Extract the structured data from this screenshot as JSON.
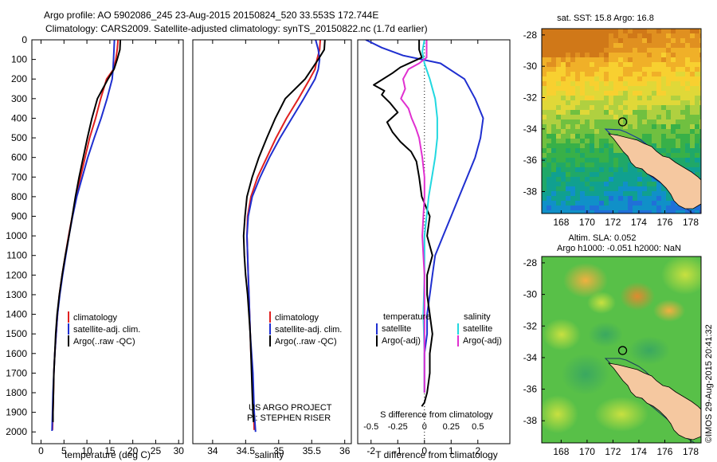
{
  "header": {
    "line1": "Argo profile: AO 5902086_245 23-Aug-2015 20150824_520 33.553S 172.744E",
    "line2": "Climatology: CARS2009. Satellite-adjusted climatology: synTS_20150822.nc (1.7d earlier)"
  },
  "colors": {
    "climatology": "#e02020",
    "satellite": "#1f2fd0",
    "argo": "#000000",
    "sat_salinity": "#22d8e0",
    "argo_salinity": "#e030d0",
    "land": "#f5c8a0"
  },
  "chart_data": [
    {
      "type": "line",
      "name": "temperature-profile",
      "xlabel": "temperature (deg C)",
      "xlim": [
        -2,
        31
      ],
      "ylim": [
        2060,
        0
      ],
      "xticks": [
        0,
        5,
        10,
        15,
        20,
        25,
        30
      ],
      "yticks": [
        0,
        100,
        200,
        300,
        400,
        500,
        600,
        700,
        800,
        900,
        1000,
        1100,
        1200,
        1300,
        1400,
        1500,
        1600,
        1700,
        1800,
        1900,
        2000
      ],
      "legend": [
        "climatology",
        "satellite-adj. clim.",
        "Argo(..raw -QC)"
      ],
      "series": [
        {
          "name": "climatology",
          "points": [
            [
              16.8,
              0
            ],
            [
              16.6,
              50
            ],
            [
              16.3,
              100
            ],
            [
              15.8,
              150
            ],
            [
              14.3,
              200
            ],
            [
              13.0,
              300
            ],
            [
              11.9,
              400
            ],
            [
              10.6,
              500
            ],
            [
              9.6,
              600
            ],
            [
              8.6,
              700
            ],
            [
              7.6,
              800
            ],
            [
              6.8,
              900
            ],
            [
              6.0,
              1000
            ],
            [
              5.3,
              1100
            ],
            [
              4.6,
              1200
            ],
            [
              4.0,
              1300
            ],
            [
              3.6,
              1400
            ],
            [
              3.3,
              1500
            ],
            [
              3.0,
              1600
            ],
            [
              2.8,
              1700
            ],
            [
              2.7,
              1800
            ],
            [
              2.6,
              1900
            ],
            [
              2.5,
              1990
            ]
          ]
        },
        {
          "name": "satellite-adj. clim.",
          "points": [
            [
              16.0,
              0
            ],
            [
              15.9,
              50
            ],
            [
              15.8,
              100
            ],
            [
              15.7,
              150
            ],
            [
              15.5,
              200
            ],
            [
              14.4,
              300
            ],
            [
              13.1,
              400
            ],
            [
              11.6,
              500
            ],
            [
              10.2,
              600
            ],
            [
              9.0,
              700
            ],
            [
              7.8,
              800
            ],
            [
              6.9,
              900
            ],
            [
              6.1,
              1000
            ],
            [
              5.4,
              1100
            ],
            [
              4.7,
              1200
            ],
            [
              4.1,
              1300
            ],
            [
              3.6,
              1400
            ],
            [
              3.3,
              1500
            ],
            [
              3.0,
              1600
            ],
            [
              2.8,
              1700
            ],
            [
              2.6,
              1800
            ],
            [
              2.5,
              1900
            ],
            [
              2.4,
              1995
            ]
          ]
        },
        {
          "name": "Argo(..raw -QC)",
          "points": [
            [
              17.3,
              0
            ],
            [
              17.2,
              50
            ],
            [
              16.6,
              100
            ],
            [
              15.9,
              150
            ],
            [
              14.6,
              200
            ],
            [
              12.3,
              300
            ],
            [
              11.1,
              400
            ],
            [
              10.1,
              500
            ],
            [
              9.2,
              600
            ],
            [
              8.3,
              700
            ],
            [
              7.5,
              800
            ],
            [
              6.8,
              900
            ],
            [
              6.1,
              1000
            ],
            [
              5.3,
              1100
            ],
            [
              4.6,
              1200
            ],
            [
              4.0,
              1300
            ],
            [
              3.5,
              1400
            ],
            [
              3.2,
              1500
            ],
            [
              3.0,
              1600
            ],
            [
              2.8,
              1700
            ],
            [
              2.7,
              1800
            ],
            [
              2.6,
              1900
            ],
            [
              2.6,
              1950
            ]
          ]
        }
      ]
    },
    {
      "type": "line",
      "name": "salinity-profile",
      "xlabel": "salinity",
      "xlim": [
        33.7,
        36.1
      ],
      "ylim": [
        2060,
        0
      ],
      "xticks": [
        34,
        34.5,
        35,
        35.5,
        36
      ],
      "legend": [
        "climatology",
        "satellite-adj. clim.",
        "Argo(..raw -QC)"
      ],
      "credit": [
        "US ARGO PROJECT",
        "PI: STEPHEN RISER"
      ],
      "series": [
        {
          "name": "climatology",
          "points": [
            [
              35.63,
              0
            ],
            [
              35.62,
              50
            ],
            [
              35.58,
              100
            ],
            [
              35.55,
              150
            ],
            [
              35.47,
              200
            ],
            [
              35.3,
              300
            ],
            [
              35.12,
              400
            ],
            [
              34.96,
              500
            ],
            [
              34.82,
              600
            ],
            [
              34.68,
              700
            ],
            [
              34.58,
              800
            ],
            [
              34.53,
              900
            ],
            [
              34.52,
              1000
            ],
            [
              34.53,
              1100
            ],
            [
              34.54,
              1200
            ],
            [
              34.55,
              1300
            ],
            [
              34.56,
              1400
            ],
            [
              34.57,
              1500
            ],
            [
              34.58,
              1600
            ],
            [
              34.6,
              1700
            ],
            [
              34.61,
              1800
            ],
            [
              34.62,
              1900
            ],
            [
              34.63,
              1990
            ]
          ]
        },
        {
          "name": "satellite-adj. clim.",
          "points": [
            [
              35.56,
              0
            ],
            [
              35.6,
              50
            ],
            [
              35.62,
              100
            ],
            [
              35.6,
              150
            ],
            [
              35.55,
              200
            ],
            [
              35.38,
              300
            ],
            [
              35.2,
              400
            ],
            [
              35.02,
              500
            ],
            [
              34.86,
              600
            ],
            [
              34.72,
              700
            ],
            [
              34.6,
              800
            ],
            [
              34.54,
              900
            ],
            [
              34.52,
              1000
            ],
            [
              34.53,
              1100
            ],
            [
              34.54,
              1200
            ],
            [
              34.55,
              1300
            ],
            [
              34.56,
              1400
            ],
            [
              34.57,
              1500
            ],
            [
              34.59,
              1600
            ],
            [
              34.61,
              1700
            ],
            [
              34.62,
              1800
            ],
            [
              34.63,
              1900
            ],
            [
              34.65,
              2000
            ]
          ]
        },
        {
          "name": "Argo(..raw -QC)",
          "points": [
            [
              35.7,
              0
            ],
            [
              35.69,
              50
            ],
            [
              35.6,
              100
            ],
            [
              35.5,
              150
            ],
            [
              35.4,
              200
            ],
            [
              35.1,
              300
            ],
            [
              34.95,
              400
            ],
            [
              34.82,
              500
            ],
            [
              34.7,
              600
            ],
            [
              34.6,
              700
            ],
            [
              34.52,
              800
            ],
            [
              34.49,
              900
            ],
            [
              34.47,
              1000
            ],
            [
              34.48,
              1100
            ],
            [
              34.5,
              1200
            ],
            [
              34.53,
              1300
            ],
            [
              34.55,
              1400
            ],
            [
              34.57,
              1500
            ],
            [
              34.58,
              1600
            ],
            [
              34.59,
              1700
            ],
            [
              34.6,
              1800
            ],
            [
              34.61,
              1900
            ],
            [
              34.62,
              1950
            ]
          ]
        }
      ]
    },
    {
      "type": "line",
      "name": "difference-profile",
      "xlabel": "T difference from climatology",
      "xlabel2": "S difference from climatology",
      "xlim": [
        -2.5,
        3.2
      ],
      "ylim": [
        2060,
        0
      ],
      "xticks": [
        -2,
        -1,
        0,
        1,
        2
      ],
      "x2ticks": [
        "-0.5",
        "-0.25",
        "0",
        "0.25",
        "0.5"
      ],
      "legend_titles": [
        "temperature",
        "salinity"
      ],
      "legend": [
        "satellite",
        "Argo(-adj)",
        "satellite",
        "Argo(-adj)"
      ],
      "series": [
        {
          "name": "satellite",
          "group": "temperature",
          "points": [
            [
              -2.2,
              0
            ],
            [
              -1.6,
              40
            ],
            [
              -0.8,
              80
            ],
            [
              0.6,
              120
            ],
            [
              1.5,
              200
            ],
            [
              1.9,
              300
            ],
            [
              2.2,
              400
            ],
            [
              2.1,
              500
            ],
            [
              1.9,
              600
            ],
            [
              1.6,
              700
            ],
            [
              1.3,
              800
            ],
            [
              1.0,
              900
            ],
            [
              0.7,
              1000
            ],
            [
              0.4,
              1100
            ],
            [
              0.3,
              1200
            ],
            [
              0.2,
              1300
            ],
            [
              0.1,
              1400
            ],
            [
              0.1,
              1500
            ],
            [
              0.0,
              1600
            ],
            [
              0.0,
              1700
            ],
            [
              0.0,
              1800
            ]
          ]
        },
        {
          "name": "Argo(-adj)",
          "group": "temperature",
          "points": [
            [
              -0.2,
              0
            ],
            [
              -0.2,
              50
            ],
            [
              -0.1,
              90
            ],
            [
              -0.9,
              140
            ],
            [
              -1.2,
              170
            ],
            [
              -1.9,
              230
            ],
            [
              -1.5,
              260
            ],
            [
              -1.6,
              280
            ],
            [
              -1.3,
              320
            ],
            [
              -1.0,
              370
            ],
            [
              -1.4,
              420
            ],
            [
              -1.2,
              470
            ],
            [
              -0.9,
              520
            ],
            [
              -0.5,
              570
            ],
            [
              -0.3,
              620
            ],
            [
              -0.2,
              700
            ],
            [
              -0.1,
              800
            ],
            [
              0.2,
              900
            ],
            [
              0.1,
              1000
            ],
            [
              0.3,
              1100
            ],
            [
              0.1,
              1200
            ],
            [
              0.1,
              1300
            ],
            [
              0.2,
              1400
            ],
            [
              0.3,
              1500
            ],
            [
              0.2,
              1600
            ],
            [
              0.2,
              1700
            ],
            [
              0.1,
              1800
            ],
            [
              0.0,
              1850
            ],
            [
              -0.1,
              1870
            ]
          ]
        },
        {
          "name": "satellite",
          "group": "salinity",
          "points": [
            [
              0.0,
              0
            ],
            [
              -0.02,
              60
            ],
            [
              0.0,
              120
            ],
            [
              0.05,
              200
            ],
            [
              0.1,
              300
            ],
            [
              0.12,
              400
            ],
            [
              0.12,
              500
            ],
            [
              0.1,
              600
            ],
            [
              0.07,
              700
            ],
            [
              0.04,
              800
            ],
            [
              0.02,
              900
            ],
            [
              0.0,
              1000
            ],
            [
              0.0,
              1200
            ],
            [
              -0.01,
              1400
            ],
            [
              0.0,
              1600
            ],
            [
              0.0,
              1800
            ]
          ]
        },
        {
          "name": "Argo(-adj)",
          "group": "salinity",
          "points": [
            [
              0.02,
              0
            ],
            [
              0.02,
              90
            ],
            [
              -0.05,
              120
            ],
            [
              -0.15,
              150
            ],
            [
              -0.2,
              200
            ],
            [
              -0.18,
              250
            ],
            [
              -0.22,
              300
            ],
            [
              -0.15,
              350
            ],
            [
              -0.12,
              400
            ],
            [
              -0.08,
              450
            ],
            [
              -0.05,
              500
            ],
            [
              -0.02,
              600
            ],
            [
              0.0,
              700
            ],
            [
              0.0,
              800
            ],
            [
              -0.01,
              900
            ],
            [
              -0.02,
              1000
            ],
            [
              -0.01,
              1100
            ],
            [
              0.0,
              1200
            ],
            [
              0.0,
              1400
            ],
            [
              0.0,
              1600
            ],
            [
              0.0,
              1800
            ]
          ]
        }
      ]
    },
    {
      "type": "heatmap",
      "name": "sst-map",
      "title": "sat. SST: 15.8  Argo: 16.8",
      "xticks": [
        168,
        170,
        172,
        174,
        176,
        178
      ],
      "yticks": [
        -28,
        -30,
        -32,
        -34,
        -36,
        -38
      ],
      "xlim": [
        166.5,
        178.8
      ],
      "ylim": [
        -39.4,
        -27.6
      ],
      "argo_position": [
        172.744,
        -33.553
      ]
    },
    {
      "type": "heatmap",
      "name": "sla-map",
      "title": "Altim. SLA: 0.052",
      "subtitle": "Argo h1000: -0.051 h2000: NaN",
      "xticks": [
        168,
        170,
        172,
        174,
        176,
        178
      ],
      "yticks": [
        -28,
        -30,
        -32,
        -34,
        -36,
        -38
      ],
      "xlim": [
        166.5,
        178.8
      ],
      "ylim": [
        -39.4,
        -27.6
      ],
      "argo_position": [
        172.744,
        -33.553
      ]
    }
  ],
  "footer_stamp": "©IMOS 29-Aug-2015 20:41:32"
}
